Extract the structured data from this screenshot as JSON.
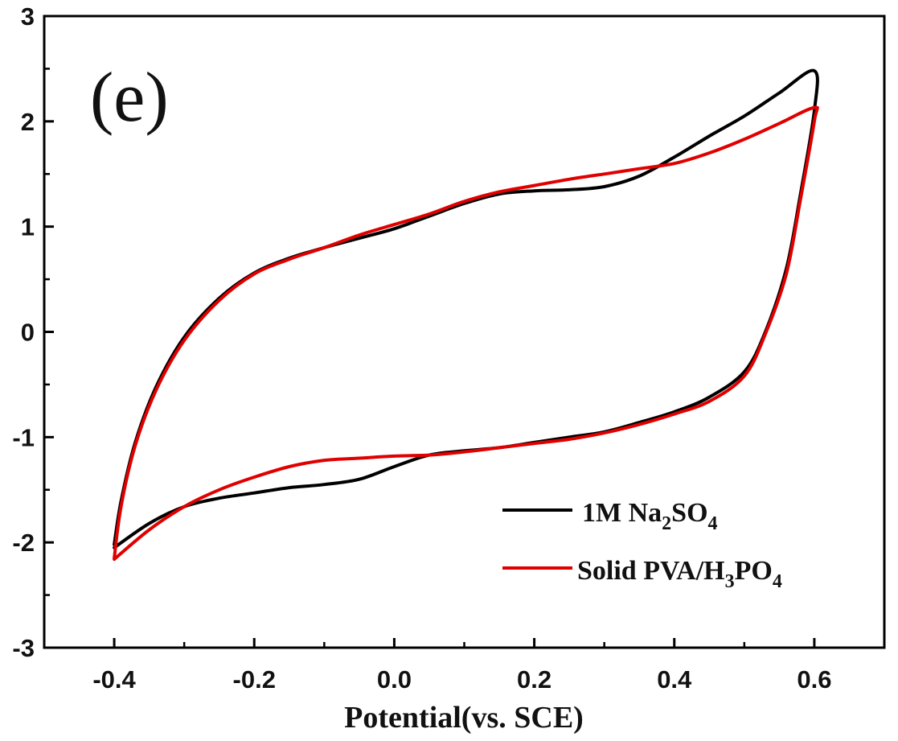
{
  "chart_data": {
    "type": "line",
    "panel_label": "(e)",
    "title": "",
    "xlabel": "Potential(vs. SCE)",
    "ylabel": "",
    "xlim": [
      -0.5,
      0.7
    ],
    "ylim": [
      -3,
      3
    ],
    "x_ticks": [
      -0.4,
      -0.2,
      0.0,
      0.2,
      0.4,
      0.6
    ],
    "x_tick_labels": [
      "-0.4",
      "-0.2",
      "0.0",
      "0.2",
      "0.4",
      "0.6"
    ],
    "y_ticks": [
      -3,
      -2,
      -1,
      0,
      1,
      2,
      3
    ],
    "y_tick_labels": [
      "-3",
      "-2",
      "-1",
      "0",
      "1",
      "2",
      "3"
    ],
    "legend_position": "bottom-right",
    "series": [
      {
        "name": "1M Na2SO4",
        "legend_main": "1M Na",
        "legend_sub1": "2",
        "legend_mid": "SO",
        "legend_sub2": "4",
        "color": "#000000",
        "points": [
          [
            -0.4,
            -2.02
          ],
          [
            -0.39,
            -1.6
          ],
          [
            -0.37,
            -1.05
          ],
          [
            -0.34,
            -0.52
          ],
          [
            -0.3,
            -0.05
          ],
          [
            -0.25,
            0.32
          ],
          [
            -0.2,
            0.56
          ],
          [
            -0.15,
            0.7
          ],
          [
            -0.1,
            0.8
          ],
          [
            -0.05,
            0.89
          ],
          [
            0.0,
            0.98
          ],
          [
            0.05,
            1.1
          ],
          [
            0.1,
            1.22
          ],
          [
            0.15,
            1.31
          ],
          [
            0.2,
            1.34
          ],
          [
            0.25,
            1.35
          ],
          [
            0.3,
            1.38
          ],
          [
            0.35,
            1.48
          ],
          [
            0.4,
            1.66
          ],
          [
            0.45,
            1.86
          ],
          [
            0.5,
            2.05
          ],
          [
            0.55,
            2.27
          ],
          [
            0.6,
            2.48
          ],
          [
            0.6,
            2.1
          ],
          [
            0.58,
            1.3
          ],
          [
            0.56,
            0.6
          ],
          [
            0.53,
            0.0
          ],
          [
            0.5,
            -0.38
          ],
          [
            0.45,
            -0.62
          ],
          [
            0.4,
            -0.76
          ],
          [
            0.35,
            -0.86
          ],
          [
            0.3,
            -0.95
          ],
          [
            0.25,
            -1.0
          ],
          [
            0.2,
            -1.05
          ],
          [
            0.15,
            -1.1
          ],
          [
            0.1,
            -1.13
          ],
          [
            0.05,
            -1.17
          ],
          [
            0.0,
            -1.28
          ],
          [
            -0.05,
            -1.4
          ],
          [
            -0.1,
            -1.45
          ],
          [
            -0.15,
            -1.48
          ],
          [
            -0.2,
            -1.53
          ],
          [
            -0.25,
            -1.58
          ],
          [
            -0.3,
            -1.66
          ],
          [
            -0.35,
            -1.82
          ],
          [
            -0.4,
            -2.05
          ]
        ]
      },
      {
        "name": "Solid PVA/H3PO4",
        "legend_main": "Solid PVA/H",
        "legend_sub1": "3",
        "legend_mid": "PO",
        "legend_sub2": "4",
        "color": "#e00000",
        "points": [
          [
            -0.4,
            -2.15
          ],
          [
            -0.39,
            -1.65
          ],
          [
            -0.37,
            -1.08
          ],
          [
            -0.34,
            -0.55
          ],
          [
            -0.3,
            -0.08
          ],
          [
            -0.25,
            0.3
          ],
          [
            -0.2,
            0.55
          ],
          [
            -0.15,
            0.69
          ],
          [
            -0.1,
            0.8
          ],
          [
            -0.05,
            0.92
          ],
          [
            0.0,
            1.02
          ],
          [
            0.05,
            1.12
          ],
          [
            0.1,
            1.24
          ],
          [
            0.15,
            1.33
          ],
          [
            0.2,
            1.39
          ],
          [
            0.25,
            1.45
          ],
          [
            0.3,
            1.5
          ],
          [
            0.35,
            1.55
          ],
          [
            0.4,
            1.6
          ],
          [
            0.45,
            1.7
          ],
          [
            0.5,
            1.83
          ],
          [
            0.55,
            1.98
          ],
          [
            0.6,
            2.13
          ],
          [
            0.6,
            2.0
          ],
          [
            0.58,
            1.25
          ],
          [
            0.56,
            0.55
          ],
          [
            0.53,
            -0.02
          ],
          [
            0.5,
            -0.42
          ],
          [
            0.45,
            -0.66
          ],
          [
            0.4,
            -0.78
          ],
          [
            0.35,
            -0.88
          ],
          [
            0.3,
            -0.96
          ],
          [
            0.25,
            -1.02
          ],
          [
            0.2,
            -1.06
          ],
          [
            0.15,
            -1.1
          ],
          [
            0.1,
            -1.14
          ],
          [
            0.05,
            -1.17
          ],
          [
            0.0,
            -1.18
          ],
          [
            -0.05,
            -1.2
          ],
          [
            -0.1,
            -1.22
          ],
          [
            -0.15,
            -1.28
          ],
          [
            -0.2,
            -1.38
          ],
          [
            -0.25,
            -1.5
          ],
          [
            -0.3,
            -1.66
          ],
          [
            -0.35,
            -1.88
          ],
          [
            -0.4,
            -2.16
          ]
        ]
      }
    ]
  }
}
